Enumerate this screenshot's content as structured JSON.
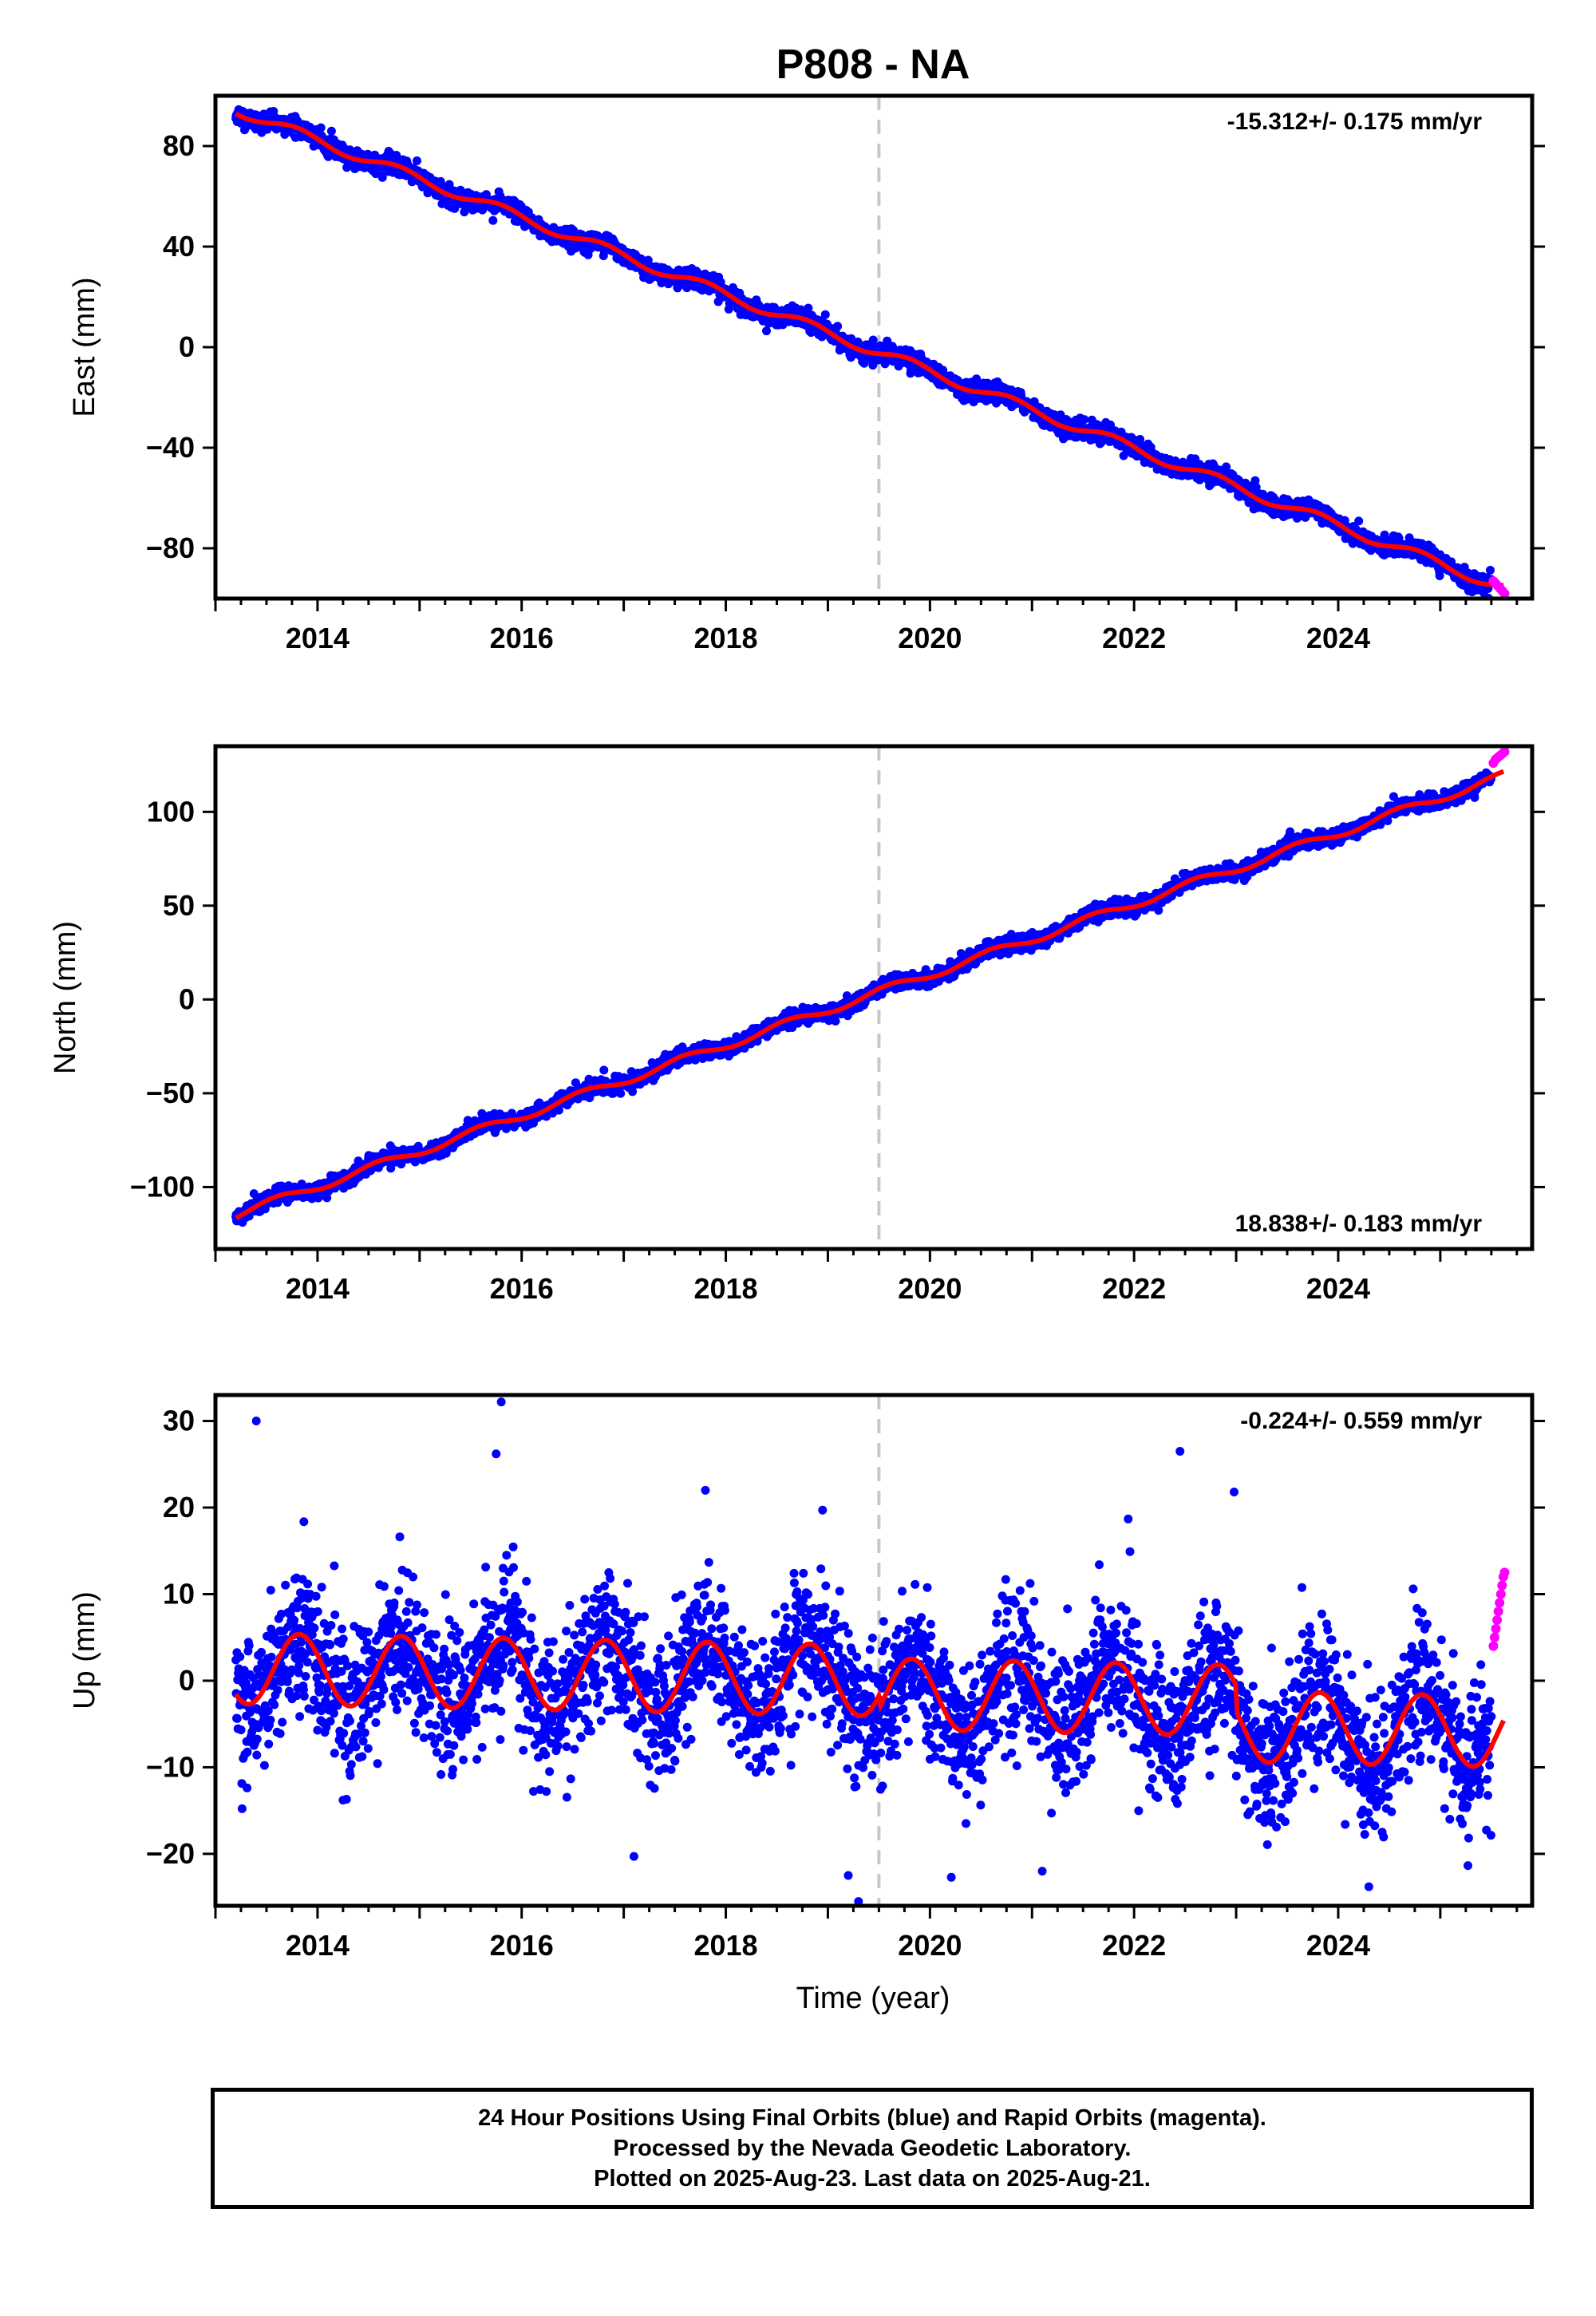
{
  "title": "P808 - NA",
  "colors": {
    "final_orbits": "#0000ff",
    "rapid_orbits": "#ff00ff",
    "model": "#ff0000",
    "dashed_line": "#c8c8c8",
    "frame": "#000000"
  },
  "chart_data": [
    {
      "type": "scatter",
      "panel": "east",
      "ylabel": "East (mm)",
      "xlabel": "",
      "xlim": [
        2013.0,
        2025.9
      ],
      "ylim": [
        -100,
        100
      ],
      "xticks": [
        2014,
        2016,
        2018,
        2020,
        2022,
        2024
      ],
      "yticks": [
        -80,
        -40,
        0,
        40,
        80
      ],
      "rate_label": "-15.312+/- 0.175 mm/yr",
      "rate_position": "top-right",
      "rate_mm_per_yr": -15.312,
      "rate_sigma": 0.175,
      "reference_epoch": 2019.5,
      "series": [
        {
          "name": "Final Orbits",
          "color": "#0000ff",
          "start": 2013.2,
          "end": 2025.5,
          "intercept_at_2019_5": -2.0,
          "noise_mm": 2.0
        },
        {
          "name": "Rapid Orbits",
          "color": "#ff00ff",
          "start": 2025.52,
          "end": 2025.63,
          "values_mm": [
            -93,
            -94,
            -95,
            -96,
            -97,
            -98
          ]
        }
      ],
      "model": {
        "slope": -15.312,
        "annual_amplitude": 2.0,
        "phase_peak": 2013.8
      }
    },
    {
      "type": "scatter",
      "panel": "north",
      "ylabel": "North (mm)",
      "xlabel": "",
      "xlim": [
        2013.0,
        2025.9
      ],
      "ylim": [
        -133,
        135
      ],
      "xticks": [
        2014,
        2016,
        2018,
        2020,
        2022,
        2024
      ],
      "yticks": [
        -100,
        -50,
        0,
        50,
        100
      ],
      "rate_label": "18.838+/- 0.183 mm/yr",
      "rate_position": "bottom-right",
      "rate_mm_per_yr": 18.838,
      "rate_sigma": 0.183,
      "reference_epoch": 2019.5,
      "series": [
        {
          "name": "Final Orbits",
          "color": "#0000ff",
          "start": 2013.2,
          "end": 2025.5,
          "intercept_at_2019_5": 4.0,
          "noise_mm": 2.2
        },
        {
          "name": "Rapid Orbits",
          "color": "#ff00ff",
          "start": 2025.52,
          "end": 2025.63,
          "values_mm": [
            126,
            128,
            129,
            130,
            131,
            132
          ]
        }
      ],
      "model": {
        "slope": 18.838,
        "annual_amplitude": 2.2,
        "phase_peak": 2013.6
      }
    },
    {
      "type": "scatter",
      "panel": "up",
      "ylabel": "Up (mm)",
      "xlabel": "Time (year)",
      "xlim": [
        2013.0,
        2025.9
      ],
      "ylim": [
        -26,
        33
      ],
      "xticks": [
        2014,
        2016,
        2018,
        2020,
        2022,
        2024
      ],
      "yticks": [
        -20,
        -10,
        0,
        10,
        20,
        30
      ],
      "rate_label": "-0.224+/- 0.559 mm/yr",
      "rate_position": "top-right",
      "rate_mm_per_yr": -0.224,
      "rate_sigma": 0.559,
      "reference_epoch": 2019.5,
      "series": [
        {
          "name": "Final Orbits",
          "color": "#0000ff",
          "start": 2013.2,
          "end": 2025.5,
          "intercept_at_2019_5": 0.0,
          "noise_mm": 4.0,
          "outliers": [
            [
              2013.4,
              30
            ],
            [
              2015.8,
              32.2
            ],
            [
              2015.75,
              26.2
            ],
            [
              2017.8,
              22
            ],
            [
              2022.45,
              26.5
            ],
            [
              2022.98,
              21.8
            ],
            [
              2019.2,
              -22.5
            ],
            [
              2019.3,
              -25.5
            ],
            [
              2024.3,
              -23.8
            ],
            [
              2021.1,
              -22
            ],
            [
              2017.1,
              -20.3
            ],
            [
              2014.25,
              -13.8
            ]
          ]
        },
        {
          "name": "Rapid Orbits",
          "color": "#ff00ff",
          "start": 2025.52,
          "end": 2025.63,
          "values_mm": [
            4,
            5,
            6,
            7,
            8,
            9,
            10,
            11,
            12,
            12.5
          ]
        }
      ],
      "model": {
        "slope": -0.224,
        "annual_amplitude": 4.1,
        "phase_peak": 2013.82,
        "offsets": [
          [
            2019.5,
            -1.5
          ],
          [
            2023.0,
            -3.0
          ]
        ]
      }
    }
  ],
  "footer": {
    "line1": "24 Hour Positions Using Final Orbits (blue) and Rapid Orbits (magenta).",
    "line2": "Processed by the Nevada Geodetic Laboratory.",
    "line3": "Plotted on 2025-Aug-23. Last data on 2025-Aug-21."
  }
}
